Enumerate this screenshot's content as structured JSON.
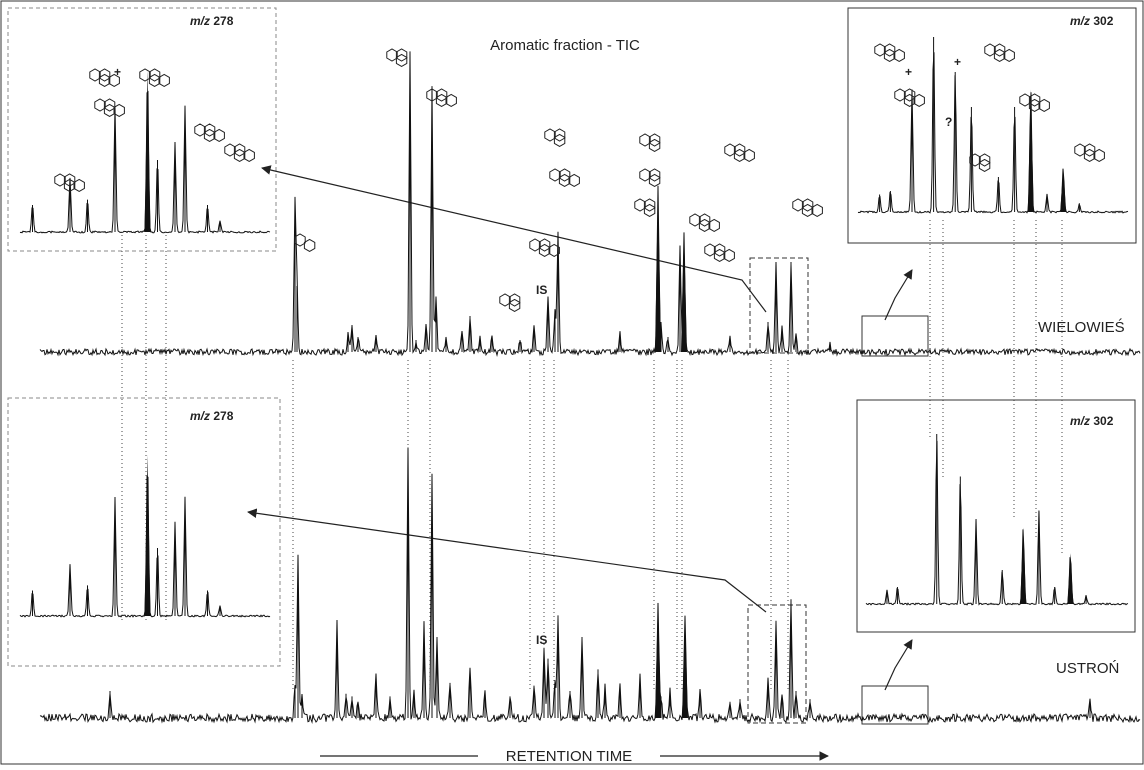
{
  "chart_data": {
    "type": "line",
    "title": "Aromatic fraction - TIC",
    "xlabel": "RETENTION TIME",
    "ylabel": "",
    "grid": false,
    "xlim": [
      0,
      1100
    ],
    "ylim": [
      0,
      1
    ],
    "series": [
      {
        "name": "WIELOWIEŚ",
        "baseline": 0.0,
        "peaks": [
          [
            255,
            0.5,
            false
          ],
          [
            257,
            0.22,
            false
          ],
          [
            308,
            0.06,
            false
          ],
          [
            312,
            0.09,
            false
          ],
          [
            318,
            0.05,
            false
          ],
          [
            336,
            0.05,
            false
          ],
          [
            370,
            1.0,
            false
          ],
          [
            376,
            0.04,
            false
          ],
          [
            386,
            0.09,
            false
          ],
          [
            392,
            0.88,
            false
          ],
          [
            396,
            0.18,
            false
          ],
          [
            406,
            0.05,
            false
          ],
          [
            422,
            0.06,
            false
          ],
          [
            430,
            0.12,
            false
          ],
          [
            440,
            0.05,
            false
          ],
          [
            452,
            0.05,
            false
          ],
          [
            480,
            0.04,
            false
          ],
          [
            494,
            0.08,
            false
          ],
          [
            508,
            0.18,
            false
          ],
          [
            515,
            0.14,
            false
          ],
          [
            518,
            0.4,
            false
          ],
          [
            580,
            0.06,
            false
          ],
          [
            618,
            0.55,
            true
          ],
          [
            621,
            0.1,
            false
          ],
          [
            628,
            0.05,
            false
          ],
          [
            640,
            0.35,
            false
          ],
          [
            644,
            0.4,
            true
          ],
          [
            690,
            0.05,
            false
          ],
          [
            728,
            0.1,
            false
          ],
          [
            736,
            0.3,
            false
          ],
          [
            742,
            0.08,
            false
          ],
          [
            751,
            0.3,
            false
          ],
          [
            756,
            0.06,
            false
          ],
          [
            790,
            0.03,
            false
          ]
        ]
      },
      {
        "name": "USTROŃ",
        "baseline": 0.0,
        "peaks": [
          [
            70,
            0.1,
            false
          ],
          [
            255,
            0.12,
            false
          ],
          [
            258,
            0.6,
            false
          ],
          [
            262,
            0.08,
            false
          ],
          [
            297,
            0.35,
            false
          ],
          [
            306,
            0.09,
            false
          ],
          [
            312,
            0.08,
            false
          ],
          [
            318,
            0.06,
            false
          ],
          [
            336,
            0.16,
            false
          ],
          [
            350,
            0.08,
            false
          ],
          [
            368,
            1.0,
            false
          ],
          [
            374,
            0.1,
            false
          ],
          [
            384,
            0.35,
            false
          ],
          [
            392,
            0.9,
            false
          ],
          [
            397,
            0.3,
            false
          ],
          [
            410,
            0.13,
            false
          ],
          [
            430,
            0.18,
            false
          ],
          [
            445,
            0.1,
            false
          ],
          [
            470,
            0.08,
            false
          ],
          [
            494,
            0.12,
            false
          ],
          [
            504,
            0.26,
            false
          ],
          [
            508,
            0.22,
            false
          ],
          [
            515,
            0.14,
            false
          ],
          [
            518,
            0.38,
            false
          ],
          [
            530,
            0.1,
            false
          ],
          [
            542,
            0.3,
            false
          ],
          [
            558,
            0.18,
            false
          ],
          [
            565,
            0.12,
            false
          ],
          [
            580,
            0.12,
            false
          ],
          [
            600,
            0.16,
            false
          ],
          [
            618,
            0.43,
            true
          ],
          [
            621,
            0.08,
            false
          ],
          [
            630,
            0.1,
            false
          ],
          [
            645,
            0.38,
            true
          ],
          [
            660,
            0.1,
            false
          ],
          [
            690,
            0.06,
            false
          ],
          [
            700,
            0.07,
            false
          ],
          [
            728,
            0.14,
            false
          ],
          [
            736,
            0.36,
            false
          ],
          [
            742,
            0.08,
            false
          ],
          [
            751,
            0.44,
            false
          ],
          [
            756,
            0.1,
            false
          ],
          [
            770,
            0.07,
            false
          ],
          [
            1050,
            0.06,
            false
          ]
        ]
      }
    ],
    "insets": [
      {
        "label_prefix": "m/z",
        "label_value": "278",
        "sample": "WIELOWIEŚ",
        "peaks": [
          [
            0.05,
            0.15,
            false
          ],
          [
            0.2,
            0.3,
            false
          ],
          [
            0.27,
            0.18,
            false
          ],
          [
            0.38,
            0.7,
            false
          ],
          [
            0.51,
            0.9,
            true
          ],
          [
            0.55,
            0.4,
            false
          ],
          [
            0.62,
            0.5,
            false
          ],
          [
            0.66,
            0.7,
            false
          ],
          [
            0.75,
            0.15,
            false
          ],
          [
            0.8,
            0.06,
            false
          ]
        ]
      },
      {
        "label_prefix": "m/z",
        "label_value": "302",
        "sample": "WIELOWIEŚ",
        "peaks": [
          [
            0.08,
            0.1,
            false
          ],
          [
            0.12,
            0.12,
            false
          ],
          [
            0.2,
            0.7,
            false
          ],
          [
            0.28,
            1.0,
            false
          ],
          [
            0.36,
            0.8,
            false
          ],
          [
            0.42,
            0.6,
            false
          ],
          [
            0.52,
            0.2,
            false
          ],
          [
            0.58,
            0.6,
            false
          ],
          [
            0.64,
            0.7,
            true
          ],
          [
            0.7,
            0.1,
            false
          ],
          [
            0.76,
            0.25,
            true
          ],
          [
            0.82,
            0.05,
            false
          ]
        ]
      },
      {
        "label_prefix": "m/z",
        "label_value": "278",
        "sample": "USTROŃ",
        "peaks": [
          [
            0.05,
            0.15,
            false
          ],
          [
            0.2,
            0.3,
            false
          ],
          [
            0.27,
            0.18,
            false
          ],
          [
            0.38,
            0.7,
            false
          ],
          [
            0.51,
            0.95,
            true
          ],
          [
            0.55,
            0.4,
            false
          ],
          [
            0.62,
            0.55,
            false
          ],
          [
            0.66,
            0.7,
            false
          ],
          [
            0.75,
            0.15,
            false
          ],
          [
            0.8,
            0.06,
            false
          ]
        ]
      },
      {
        "label_prefix": "m/z",
        "label_value": "302",
        "sample": "USTROŃ",
        "peaks": [
          [
            0.08,
            0.08,
            false
          ],
          [
            0.12,
            0.1,
            false
          ],
          [
            0.27,
            1.0,
            false
          ],
          [
            0.36,
            0.75,
            false
          ],
          [
            0.42,
            0.5,
            false
          ],
          [
            0.52,
            0.2,
            false
          ],
          [
            0.6,
            0.45,
            true
          ],
          [
            0.66,
            0.55,
            false
          ],
          [
            0.72,
            0.1,
            false
          ],
          [
            0.78,
            0.3,
            true
          ],
          [
            0.84,
            0.05,
            false
          ]
        ]
      }
    ],
    "annotations": {
      "internal_standard": "IS",
      "co_elution": "+",
      "unknown": "?"
    }
  }
}
